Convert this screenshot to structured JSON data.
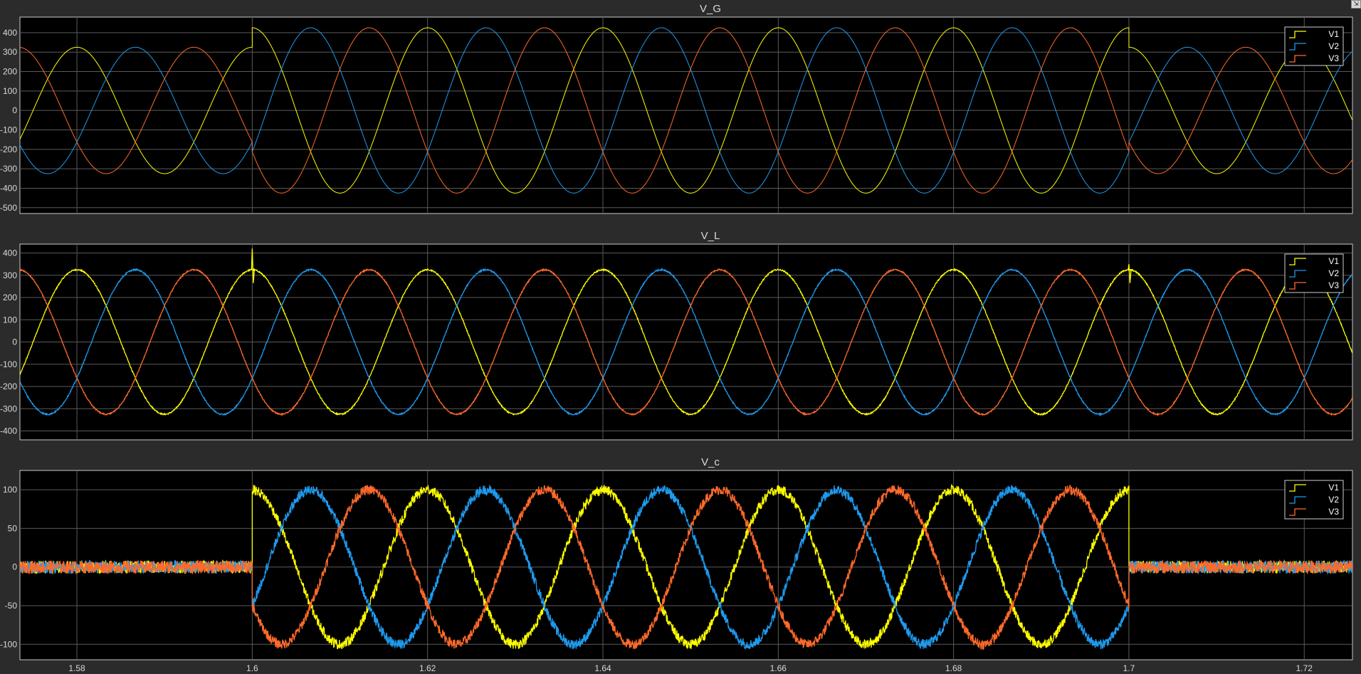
{
  "corner_button": {
    "icon": "undock-icon",
    "glyph": "⇲"
  },
  "colors": {
    "background": "#2b2b2b",
    "axes_bg": "#000000",
    "grid": "#5a5a5a",
    "text": "#d9d9d9",
    "V1": "#ffff00",
    "V2": "#1e9bf0",
    "V3": "#ff6a2a"
  },
  "chart_data": [
    {
      "type": "line",
      "title": "V_G",
      "xlabel": "",
      "ylabel": "",
      "xlim": [
        1.5735,
        1.7255
      ],
      "ylim": [
        -530,
        480
      ],
      "yticks": [
        400,
        300,
        200,
        100,
        0,
        -100,
        -200,
        -300,
        -400,
        -500
      ],
      "ytick_labels": [
        "400",
        "300",
        "200",
        "100",
        "0",
        "-100",
        "-200",
        "-300",
        "-400",
        "-500"
      ],
      "xticks": [
        1.58,
        1.6,
        1.62,
        1.64,
        1.66,
        1.68,
        1.7,
        1.72
      ],
      "xtick_labels": [],
      "grid": true,
      "legend": "top-right",
      "frequency_hz": 50,
      "series": [
        {
          "name": "V1",
          "color": "#ffff00",
          "phase_deg": 0,
          "segments": [
            {
              "t0": 1.5735,
              "t1": 1.6,
              "amplitude": 325
            },
            {
              "t0": 1.6,
              "t1": 1.7,
              "amplitude": 425
            },
            {
              "t0": 1.7,
              "t1": 1.7255,
              "amplitude": 325
            }
          ]
        },
        {
          "name": "V2",
          "color": "#1e9bf0",
          "phase_deg": -120,
          "segments": [
            {
              "t0": 1.5735,
              "t1": 1.6,
              "amplitude": 325
            },
            {
              "t0": 1.6,
              "t1": 1.7,
              "amplitude": 425
            },
            {
              "t0": 1.7,
              "t1": 1.7255,
              "amplitude": 325
            }
          ]
        },
        {
          "name": "V3",
          "color": "#ff6a2a",
          "phase_deg": 120,
          "segments": [
            {
              "t0": 1.5735,
              "t1": 1.6,
              "amplitude": 325
            },
            {
              "t0": 1.6,
              "t1": 1.7,
              "amplitude": 425
            },
            {
              "t0": 1.7,
              "t1": 1.7255,
              "amplitude": 325
            }
          ]
        }
      ]
    },
    {
      "type": "line",
      "title": "V_L",
      "xlabel": "",
      "ylabel": "",
      "xlim": [
        1.5735,
        1.7255
      ],
      "ylim": [
        -440,
        440
      ],
      "yticks": [
        400,
        300,
        200,
        100,
        0,
        -100,
        -200,
        -300,
        -400
      ],
      "ytick_labels": [
        "400",
        "300",
        "200",
        "100",
        "0",
        "-100",
        "-200",
        "-300",
        "-400"
      ],
      "xticks": [
        1.58,
        1.6,
        1.62,
        1.64,
        1.66,
        1.68,
        1.7,
        1.72
      ],
      "xtick_labels": [],
      "grid": true,
      "legend": "top-right",
      "frequency_hz": 50,
      "transients": [
        {
          "t": 1.6,
          "series": "V1",
          "peak": 420
        },
        {
          "t": 1.7,
          "series": "V1",
          "peak": 350
        }
      ],
      "series": [
        {
          "name": "V1",
          "color": "#ffff00",
          "phase_deg": 0,
          "segments": [
            {
              "t0": 1.5735,
              "t1": 1.7255,
              "amplitude": 325
            }
          ]
        },
        {
          "name": "V2",
          "color": "#1e9bf0",
          "phase_deg": -120,
          "segments": [
            {
              "t0": 1.5735,
              "t1": 1.7255,
              "amplitude": 325
            }
          ]
        },
        {
          "name": "V3",
          "color": "#ff6a2a",
          "phase_deg": 120,
          "segments": [
            {
              "t0": 1.5735,
              "t1": 1.7255,
              "amplitude": 325
            }
          ]
        }
      ]
    },
    {
      "type": "line",
      "title": "V_c",
      "xlabel": "",
      "ylabel": "",
      "xlim": [
        1.5735,
        1.7255
      ],
      "ylim": [
        -120,
        125
      ],
      "yticks": [
        100,
        50,
        0,
        -50,
        -100
      ],
      "ytick_labels": [
        "100",
        "50",
        "0",
        "-50",
        "-100"
      ],
      "xticks": [
        1.58,
        1.6,
        1.62,
        1.64,
        1.66,
        1.68,
        1.7,
        1.72
      ],
      "xtick_labels": [
        "1.58",
        "1.6",
        "1.62",
        "1.64",
        "1.66",
        "1.68",
        "1.7",
        "1.72"
      ],
      "grid": true,
      "legend": "top-right",
      "frequency_hz": 50,
      "series": [
        {
          "name": "V1",
          "color": "#ffff00",
          "phase_deg": 0,
          "segments": [
            {
              "t0": 1.5735,
              "t1": 1.6,
              "amplitude": 0
            },
            {
              "t0": 1.6,
              "t1": 1.7,
              "amplitude": 100
            },
            {
              "t0": 1.7,
              "t1": 1.7255,
              "amplitude": 0
            }
          ]
        },
        {
          "name": "V2",
          "color": "#1e9bf0",
          "phase_deg": -120,
          "segments": [
            {
              "t0": 1.5735,
              "t1": 1.6,
              "amplitude": 0
            },
            {
              "t0": 1.6,
              "t1": 1.7,
              "amplitude": 100
            },
            {
              "t0": 1.7,
              "t1": 1.7255,
              "amplitude": 0
            }
          ]
        },
        {
          "name": "V3",
          "color": "#ff6a2a",
          "phase_deg": 120,
          "segments": [
            {
              "t0": 1.5735,
              "t1": 1.6,
              "amplitude": 0
            },
            {
              "t0": 1.6,
              "t1": 1.7,
              "amplitude": 100
            },
            {
              "t0": 1.7,
              "t1": 1.7255,
              "amplitude": 0
            }
          ]
        }
      ]
    }
  ]
}
